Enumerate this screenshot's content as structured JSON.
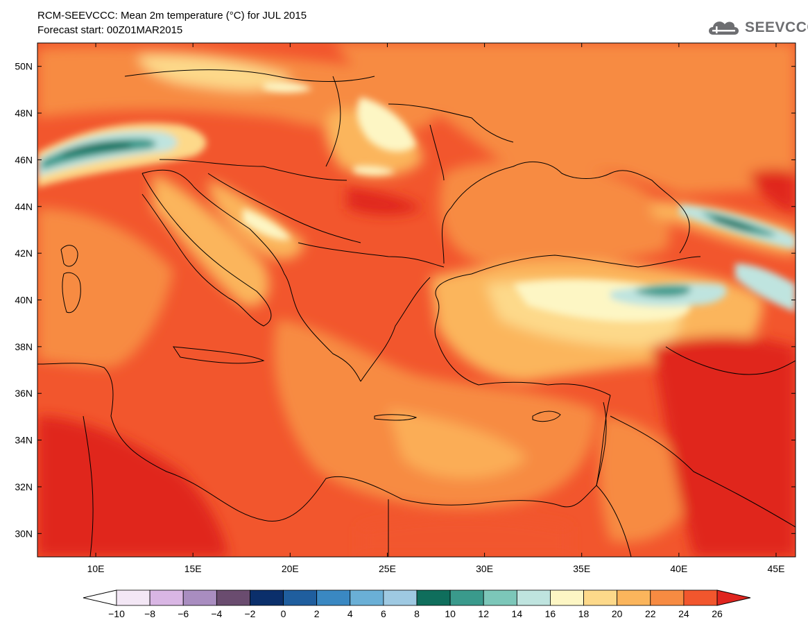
{
  "header": {
    "title_line1": "RCM-SEEVCCC: Mean 2m temperature (°C) for JUL 2015",
    "title_line2": "Forecast start: 00Z01MAR2015"
  },
  "logo": {
    "text": "SEEVCCC",
    "icon": "cloud-icon"
  },
  "map": {
    "projection": "lat-lon",
    "lon_range": [
      7,
      46
    ],
    "lat_range": [
      29,
      51
    ],
    "lon_ticks": [
      "10E",
      "15E",
      "20E",
      "25E",
      "30E",
      "35E",
      "40E",
      "45E"
    ],
    "lat_ticks": [
      "30N",
      "32N",
      "34N",
      "36N",
      "38N",
      "40N",
      "42N",
      "44N",
      "46N",
      "48N",
      "50N"
    ]
  },
  "colorbar": {
    "labels": [
      "-10",
      "-8",
      "-6",
      "-4",
      "-2",
      "0",
      "2",
      "4",
      "6",
      "8",
      "10",
      "12",
      "14",
      "16",
      "18",
      "20",
      "22",
      "24",
      "26"
    ],
    "colors": [
      "#f3e7f5",
      "#d9b6e4",
      "#a98dc0",
      "#6a4c6f",
      "#0b2f6b",
      "#1f5e9e",
      "#3a88c2",
      "#6aafd6",
      "#9ec9e2",
      "#0f6e5c",
      "#3a9a8c",
      "#7cc7b9",
      "#bfe4df",
      "#fdf6c4",
      "#fdd98a",
      "#fbb55c",
      "#f78b42",
      "#f2562d"
    ],
    "low_color": "#ffffff",
    "high_color": "#e0251f"
  }
}
